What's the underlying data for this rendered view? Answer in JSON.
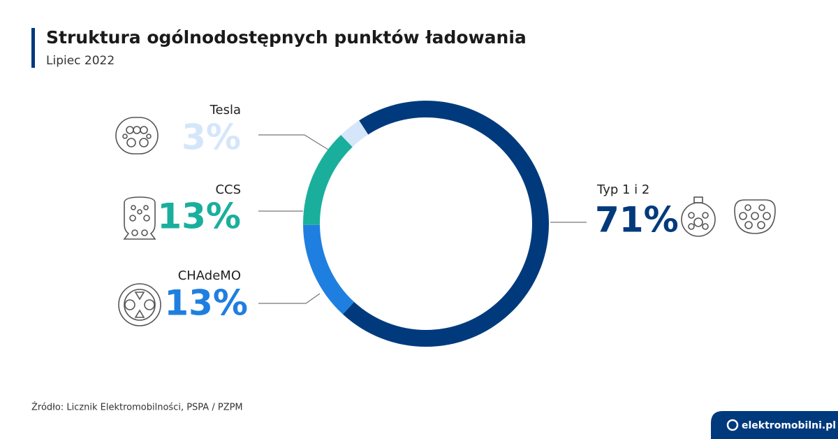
{
  "chart_data": {
    "type": "donut",
    "title": "Struktura ogólnodostępnych punktów ładowania",
    "subtitle": "Lipiec 2022",
    "categories": [
      "Typ 1 i 2",
      "CHAdeMO",
      "CCS",
      "Tesla"
    ],
    "values": [
      71,
      13,
      13,
      3
    ],
    "value_labels": [
      "71%",
      "13%",
      "13%",
      "3%"
    ],
    "colors": [
      "#003a7d",
      "#1f7fe0",
      "#1aaf9d",
      "#d6e6fa"
    ],
    "source": "Źródło: Licznik Elektromobilności, PSPA / PZPM",
    "brand": "elektromobilni.pl"
  }
}
